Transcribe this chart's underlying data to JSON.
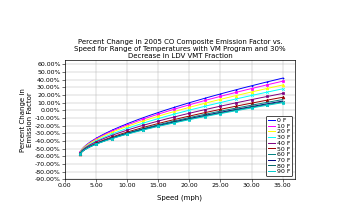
{
  "title": "Percent Change in 2005 CO Composite Emission Factor vs.\nSpeed for Range of Temperatures with VM Program and 30%\nDecrease in LDV VMT Fraction",
  "xlabel": "Speed (mph)",
  "ylabel": "Percent Change in\nEmission Factor",
  "xlim": [
    0.0,
    37.0
  ],
  "ylim": [
    -0.9,
    0.65
  ],
  "ytick_vals": [
    -0.9,
    -0.8,
    -0.7,
    -0.6,
    -0.5,
    -0.4,
    -0.3,
    -0.2,
    -0.1,
    0.0,
    0.1,
    0.2,
    0.3,
    0.4,
    0.5,
    0.6
  ],
  "xtick_vals": [
    0.0,
    5.0,
    10.0,
    15.0,
    20.0,
    25.0,
    30.0,
    35.0
  ],
  "temperatures": [
    0,
    10,
    20,
    30,
    40,
    50,
    60,
    70,
    80,
    90
  ],
  "end_values": [
    0.42,
    0.38,
    0.33,
    0.28,
    0.22,
    0.17,
    0.14,
    0.12,
    0.11,
    0.1
  ],
  "start_values": [
    -0.55,
    -0.55,
    -0.55,
    -0.56,
    -0.56,
    -0.57,
    -0.57,
    -0.57,
    -0.57,
    -0.57
  ],
  "line_colors": [
    "#0000FF",
    "#FF00FF",
    "#FFFF00",
    "#00FFFF",
    "#800080",
    "#990000",
    "#008080",
    "#000080",
    "#006666",
    "#00CCCC"
  ],
  "marker_styles": [
    "+",
    "s",
    "^",
    "x",
    "s",
    "^",
    null,
    null,
    "x",
    "s"
  ],
  "background": "#FFFFFF",
  "title_fontsize": 5,
  "axis_label_fontsize": 5,
  "tick_fontsize": 4.5,
  "legend_fontsize": 4.5
}
